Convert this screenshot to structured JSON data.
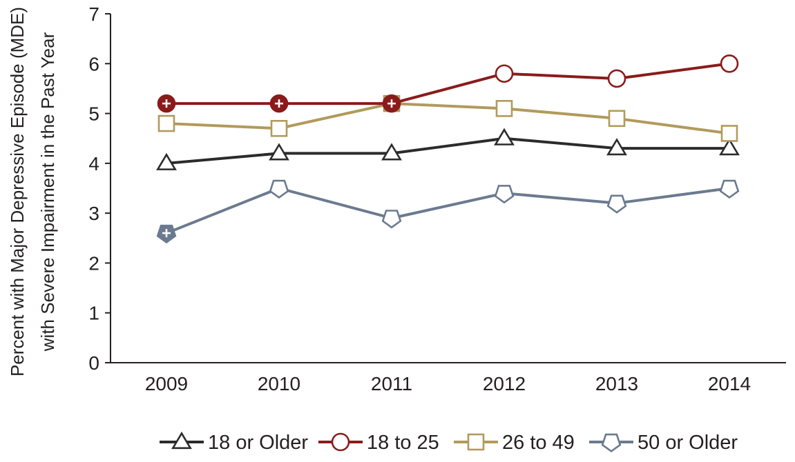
{
  "chart_data": {
    "type": "line",
    "title": "",
    "ylabel_lines": [
      "Percent with Major Depressive Episode (MDE)",
      "with Severe Impairment in the Past Year"
    ],
    "xlabel": "",
    "x": [
      "2009",
      "2010",
      "2011",
      "2012",
      "2013",
      "2014"
    ],
    "ylim": [
      0,
      7
    ],
    "yticks": [
      "0",
      "1",
      "2",
      "3",
      "4",
      "5",
      "6",
      "7"
    ],
    "grid": false,
    "legend_position": "bottom",
    "series": [
      {
        "name": "18 or Older",
        "marker": "triangle",
        "color": "#2b2b2b",
        "values": [
          4.0,
          4.2,
          4.2,
          4.5,
          4.3,
          4.3
        ],
        "significant": [
          false,
          false,
          false,
          false,
          false,
          false
        ]
      },
      {
        "name": "18 to 25",
        "marker": "circle",
        "color": "#8a1b1b",
        "values": [
          5.2,
          5.2,
          5.2,
          5.8,
          5.7,
          6.0
        ],
        "significant": [
          true,
          true,
          true,
          false,
          false,
          false
        ]
      },
      {
        "name": "26 to 49",
        "marker": "square",
        "color": "#b19a5c",
        "values": [
          4.8,
          4.7,
          5.2,
          5.1,
          4.9,
          4.6
        ],
        "significant": [
          false,
          false,
          false,
          false,
          false,
          false
        ]
      },
      {
        "name": "50 or Older",
        "marker": "pentagon",
        "color": "#6b7a8f",
        "values": [
          2.6,
          3.5,
          2.9,
          3.4,
          3.2,
          3.5
        ],
        "significant": [
          true,
          false,
          false,
          false,
          false,
          false
        ]
      }
    ]
  }
}
